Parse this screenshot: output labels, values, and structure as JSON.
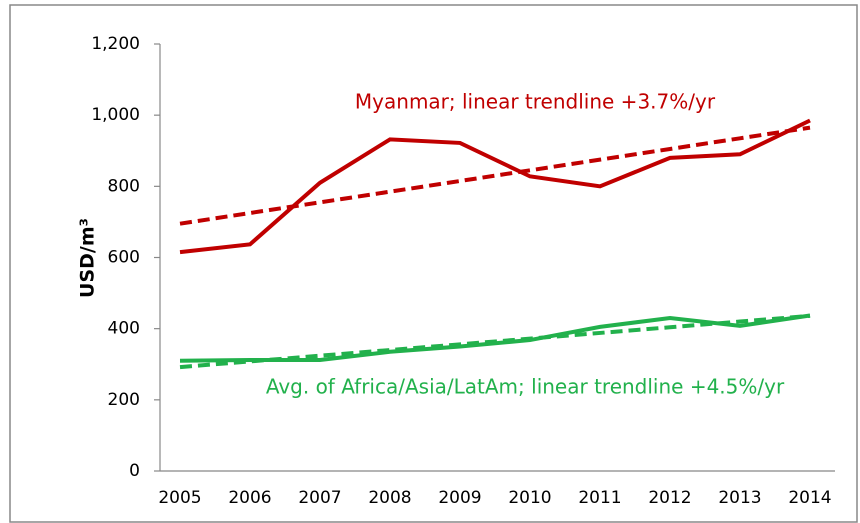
{
  "chart_data": {
    "type": "line",
    "y_label": "USD/m³",
    "categories": [
      "2005",
      "2006",
      "2007",
      "2008",
      "2009",
      "2010",
      "2011",
      "2012",
      "2013",
      "2014"
    ],
    "series": [
      {
        "color": "#c00000",
        "dashed": false,
        "values": [
          615,
          637,
          810,
          932,
          922,
          828,
          800,
          880,
          890,
          985
        ]
      },
      {
        "color": "#c00000",
        "dashed": true,
        "values": [
          695,
          725,
          755,
          785,
          815,
          845,
          875,
          905,
          935,
          965
        ]
      },
      {
        "color": "#22b14c",
        "dashed": false,
        "values": [
          310,
          312,
          312,
          335,
          350,
          368,
          405,
          430,
          408,
          437
        ]
      },
      {
        "color": "#22b14c",
        "dashed": true,
        "values": [
          292,
          308,
          324,
          340,
          356,
          372,
          388,
          404,
          420,
          436
        ]
      }
    ],
    "annotations": [
      {
        "text": "Myanmar; linear trendline +3.7%/yr",
        "color": "#c00000"
      },
      {
        "text": "Avg. of Africa/Asia/LatAm; linear trendline +4.5%/yr",
        "color": "#22b14c"
      }
    ],
    "ylim": [
      0,
      1200
    ],
    "yticks": [
      0,
      200,
      400,
      600,
      800,
      {
        "value": 1000,
        "label": "1,000"
      },
      {
        "value": 1200,
        "label": "1,200"
      }
    ],
    "grid": false
  }
}
